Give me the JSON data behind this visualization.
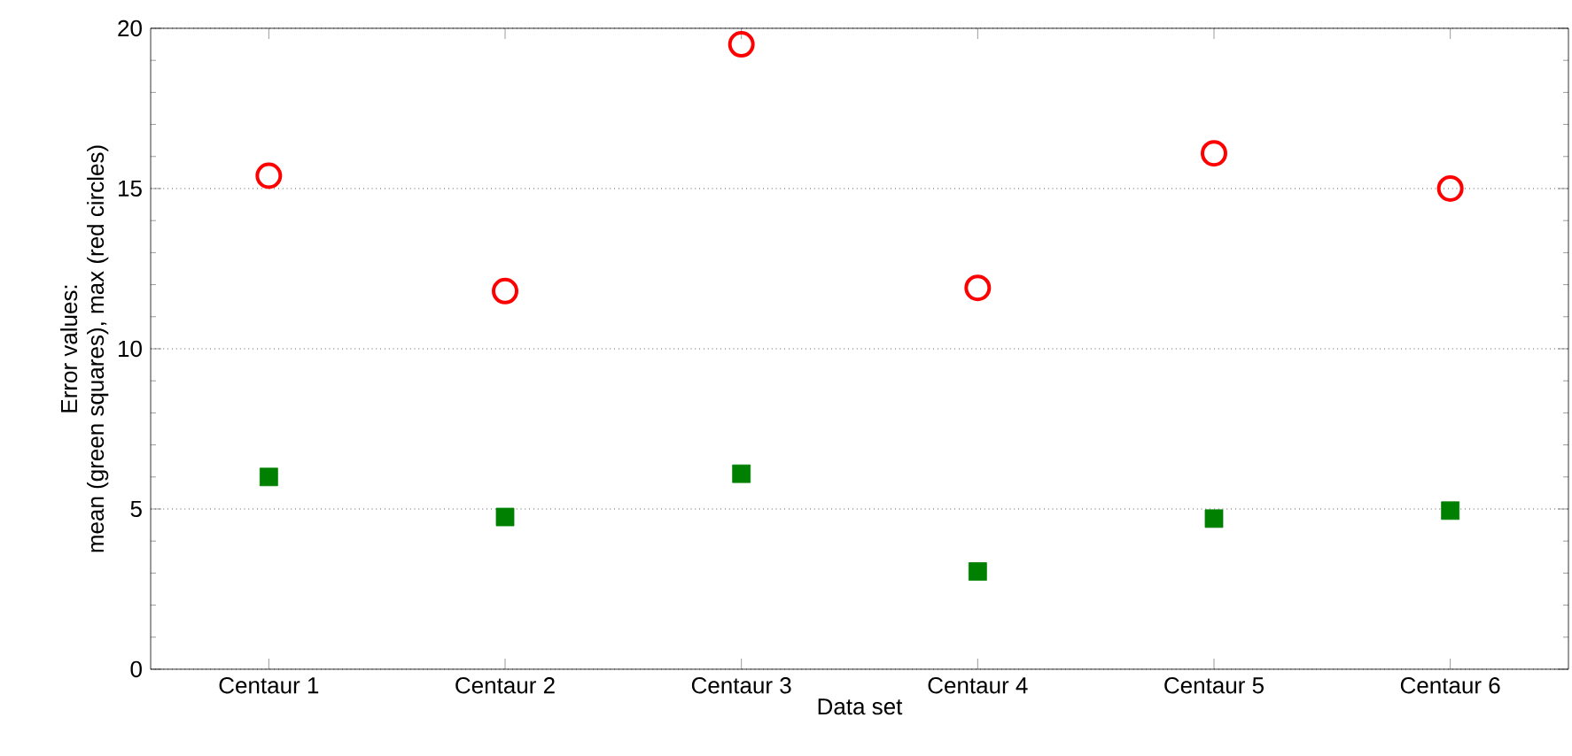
{
  "chart_data": {
    "type": "scatter",
    "xlabel": "Data set",
    "ylabel": [
      "Error values:",
      "mean (green squares), max (red circles)"
    ],
    "categories": [
      "Centaur 1",
      "Centaur 2",
      "Centaur 3",
      "Centaur 4",
      "Centaur 5",
      "Centaur 6"
    ],
    "series": [
      {
        "color": "#ff0000",
        "marker": "circle",
        "values": [
          15.4,
          11.8,
          19.5,
          11.9,
          16.1,
          15.0
        ]
      },
      {
        "color": "#008000",
        "marker": "square",
        "values": [
          6.0,
          4.75,
          6.1,
          3.05,
          4.7,
          4.95
        ]
      }
    ],
    "ylim": [
      0,
      20
    ],
    "yticks": [
      0,
      5,
      10,
      15,
      20
    ],
    "grid": "y"
  }
}
